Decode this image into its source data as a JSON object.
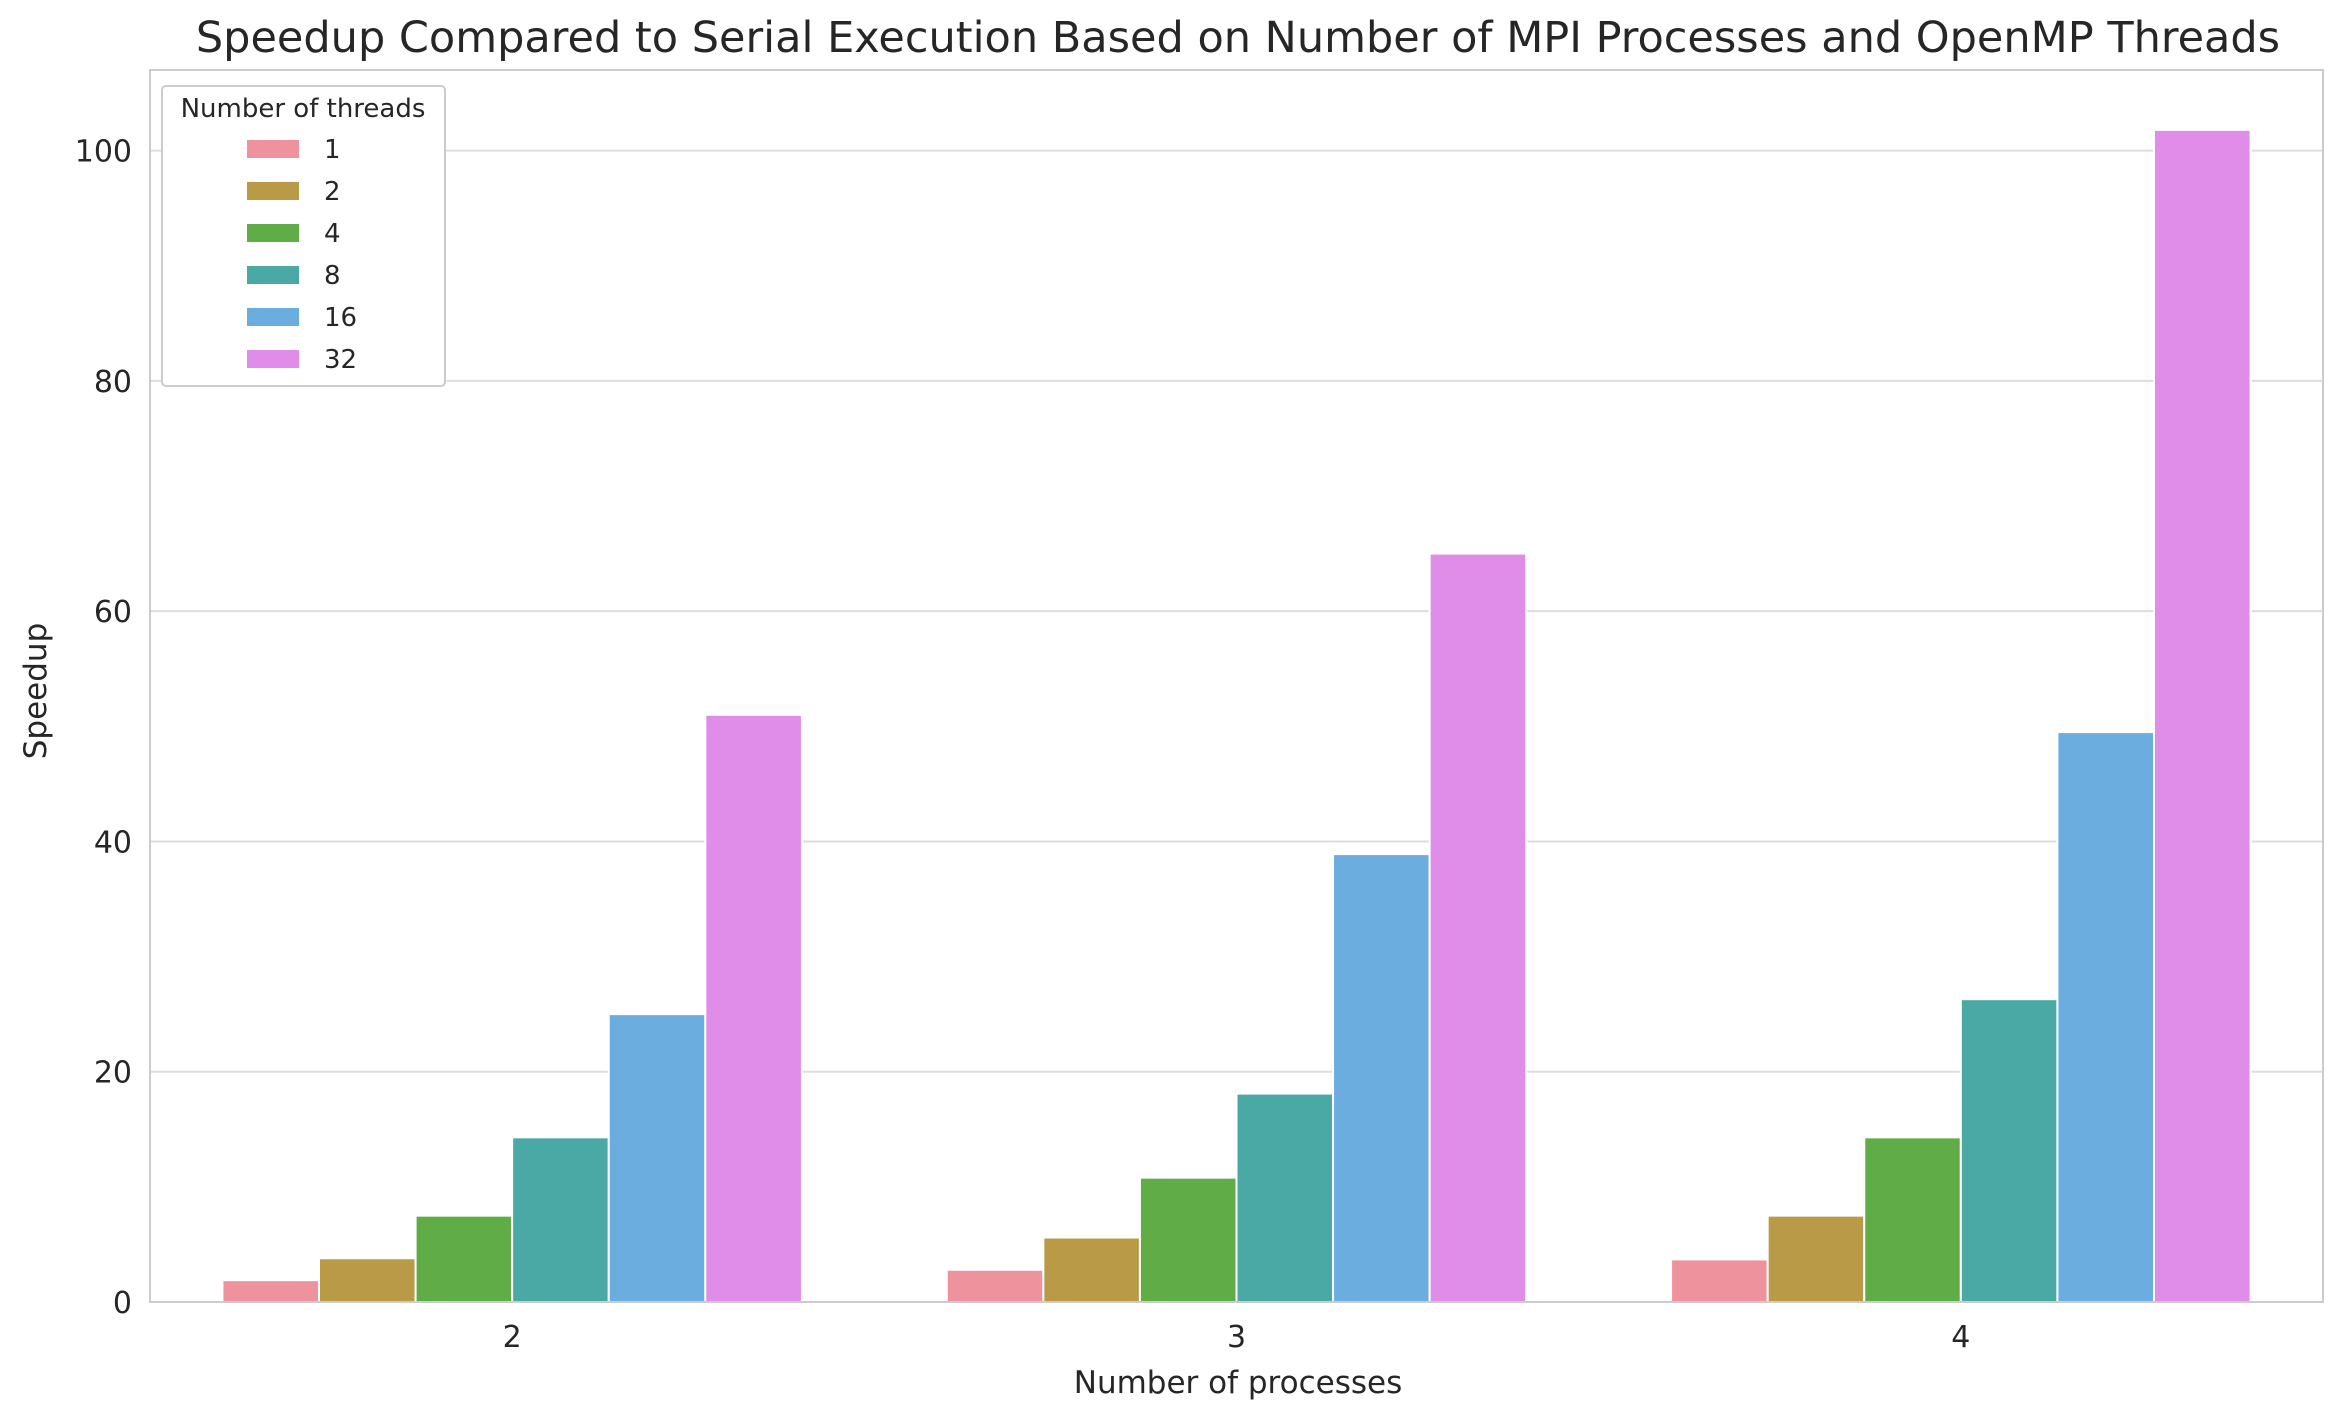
{
  "chart_data": {
    "type": "bar",
    "title": "Speedup Compared to Serial Execution Based on Number of MPI Processes and OpenMP Threads",
    "xlabel": "Number of processes",
    "ylabel": "Speedup",
    "categories": [
      "2",
      "3",
      "4"
    ],
    "ylim": [
      0,
      107
    ],
    "yticks": [
      0,
      20,
      40,
      60,
      80,
      100
    ],
    "grid": true,
    "legend": {
      "title": "Number of threads",
      "position": "top-left"
    },
    "series": [
      {
        "name": "1",
        "color": "#ee929e",
        "values": [
          1.9,
          2.8,
          3.7
        ]
      },
      {
        "name": "2",
        "color": "#b99a47",
        "values": [
          3.8,
          5.6,
          7.5
        ]
      },
      {
        "name": "4",
        "color": "#60ad48",
        "values": [
          7.5,
          10.8,
          14.3
        ]
      },
      {
        "name": "8",
        "color": "#4ba9a5",
        "values": [
          14.3,
          18.1,
          26.3
        ]
      },
      {
        "name": "16",
        "color": "#6cade0",
        "values": [
          25.0,
          38.9,
          49.5
        ]
      },
      {
        "name": "32",
        "color": "#df8de8",
        "values": [
          51.0,
          65.0,
          101.8
        ]
      }
    ]
  }
}
